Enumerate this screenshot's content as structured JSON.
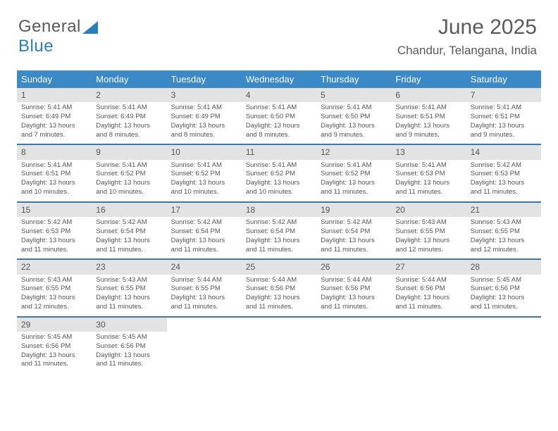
{
  "logo": {
    "word1": "General",
    "word2": "Blue"
  },
  "title": "June 2025",
  "subtitle": "Chandur, Telangana, India",
  "colors": {
    "header_bg": "#3b89c7",
    "header_text": "#ffffff",
    "daynum_bg": "#e3e3e3",
    "text": "#555555",
    "row_border": "#3b7aa8",
    "logo_gray": "#5a5a5a",
    "logo_blue": "#2a7fba"
  },
  "weekdays": [
    "Sunday",
    "Monday",
    "Tuesday",
    "Wednesday",
    "Thursday",
    "Friday",
    "Saturday"
  ],
  "weeks": [
    [
      {
        "n": "1",
        "sr": "Sunrise: 5:41 AM",
        "ss": "Sunset: 6:49 PM",
        "d1": "Daylight: 13 hours",
        "d2": "and 7 minutes."
      },
      {
        "n": "2",
        "sr": "Sunrise: 5:41 AM",
        "ss": "Sunset: 6:49 PM",
        "d1": "Daylight: 13 hours",
        "d2": "and 8 minutes."
      },
      {
        "n": "3",
        "sr": "Sunrise: 5:41 AM",
        "ss": "Sunset: 6:49 PM",
        "d1": "Daylight: 13 hours",
        "d2": "and 8 minutes."
      },
      {
        "n": "4",
        "sr": "Sunrise: 5:41 AM",
        "ss": "Sunset: 6:50 PM",
        "d1": "Daylight: 13 hours",
        "d2": "and 8 minutes."
      },
      {
        "n": "5",
        "sr": "Sunrise: 5:41 AM",
        "ss": "Sunset: 6:50 PM",
        "d1": "Daylight: 13 hours",
        "d2": "and 9 minutes."
      },
      {
        "n": "6",
        "sr": "Sunrise: 5:41 AM",
        "ss": "Sunset: 6:51 PM",
        "d1": "Daylight: 13 hours",
        "d2": "and 9 minutes."
      },
      {
        "n": "7",
        "sr": "Sunrise: 5:41 AM",
        "ss": "Sunset: 6:51 PM",
        "d1": "Daylight: 13 hours",
        "d2": "and 9 minutes."
      }
    ],
    [
      {
        "n": "8",
        "sr": "Sunrise: 5:41 AM",
        "ss": "Sunset: 6:51 PM",
        "d1": "Daylight: 13 hours",
        "d2": "and 10 minutes."
      },
      {
        "n": "9",
        "sr": "Sunrise: 5:41 AM",
        "ss": "Sunset: 6:52 PM",
        "d1": "Daylight: 13 hours",
        "d2": "and 10 minutes."
      },
      {
        "n": "10",
        "sr": "Sunrise: 5:41 AM",
        "ss": "Sunset: 6:52 PM",
        "d1": "Daylight: 13 hours",
        "d2": "and 10 minutes."
      },
      {
        "n": "11",
        "sr": "Sunrise: 5:41 AM",
        "ss": "Sunset: 6:52 PM",
        "d1": "Daylight: 13 hours",
        "d2": "and 10 minutes."
      },
      {
        "n": "12",
        "sr": "Sunrise: 5:41 AM",
        "ss": "Sunset: 6:52 PM",
        "d1": "Daylight: 13 hours",
        "d2": "and 11 minutes."
      },
      {
        "n": "13",
        "sr": "Sunrise: 5:41 AM",
        "ss": "Sunset: 6:53 PM",
        "d1": "Daylight: 13 hours",
        "d2": "and 11 minutes."
      },
      {
        "n": "14",
        "sr": "Sunrise: 5:42 AM",
        "ss": "Sunset: 6:53 PM",
        "d1": "Daylight: 13 hours",
        "d2": "and 11 minutes."
      }
    ],
    [
      {
        "n": "15",
        "sr": "Sunrise: 5:42 AM",
        "ss": "Sunset: 6:53 PM",
        "d1": "Daylight: 13 hours",
        "d2": "and 11 minutes."
      },
      {
        "n": "16",
        "sr": "Sunrise: 5:42 AM",
        "ss": "Sunset: 6:54 PM",
        "d1": "Daylight: 13 hours",
        "d2": "and 11 minutes."
      },
      {
        "n": "17",
        "sr": "Sunrise: 5:42 AM",
        "ss": "Sunset: 6:54 PM",
        "d1": "Daylight: 13 hours",
        "d2": "and 11 minutes."
      },
      {
        "n": "18",
        "sr": "Sunrise: 5:42 AM",
        "ss": "Sunset: 6:54 PM",
        "d1": "Daylight: 13 hours",
        "d2": "and 11 minutes."
      },
      {
        "n": "19",
        "sr": "Sunrise: 5:42 AM",
        "ss": "Sunset: 6:54 PM",
        "d1": "Daylight: 13 hours",
        "d2": "and 11 minutes."
      },
      {
        "n": "20",
        "sr": "Sunrise: 5:43 AM",
        "ss": "Sunset: 6:55 PM",
        "d1": "Daylight: 13 hours",
        "d2": "and 12 minutes."
      },
      {
        "n": "21",
        "sr": "Sunrise: 5:43 AM",
        "ss": "Sunset: 6:55 PM",
        "d1": "Daylight: 13 hours",
        "d2": "and 12 minutes."
      }
    ],
    [
      {
        "n": "22",
        "sr": "Sunrise: 5:43 AM",
        "ss": "Sunset: 6:55 PM",
        "d1": "Daylight: 13 hours",
        "d2": "and 12 minutes."
      },
      {
        "n": "23",
        "sr": "Sunrise: 5:43 AM",
        "ss": "Sunset: 6:55 PM",
        "d1": "Daylight: 13 hours",
        "d2": "and 11 minutes."
      },
      {
        "n": "24",
        "sr": "Sunrise: 5:44 AM",
        "ss": "Sunset: 6:55 PM",
        "d1": "Daylight: 13 hours",
        "d2": "and 11 minutes."
      },
      {
        "n": "25",
        "sr": "Sunrise: 5:44 AM",
        "ss": "Sunset: 6:56 PM",
        "d1": "Daylight: 13 hours",
        "d2": "and 11 minutes."
      },
      {
        "n": "26",
        "sr": "Sunrise: 5:44 AM",
        "ss": "Sunset: 6:56 PM",
        "d1": "Daylight: 13 hours",
        "d2": "and 11 minutes."
      },
      {
        "n": "27",
        "sr": "Sunrise: 5:44 AM",
        "ss": "Sunset: 6:56 PM",
        "d1": "Daylight: 13 hours",
        "d2": "and 11 minutes."
      },
      {
        "n": "28",
        "sr": "Sunrise: 5:45 AM",
        "ss": "Sunset: 6:56 PM",
        "d1": "Daylight: 13 hours",
        "d2": "and 11 minutes."
      }
    ],
    [
      {
        "n": "29",
        "sr": "Sunrise: 5:45 AM",
        "ss": "Sunset: 6:56 PM",
        "d1": "Daylight: 13 hours",
        "d2": "and 11 minutes."
      },
      {
        "n": "30",
        "sr": "Sunrise: 5:45 AM",
        "ss": "Sunset: 6:56 PM",
        "d1": "Daylight: 13 hours",
        "d2": "and 11 minutes."
      },
      null,
      null,
      null,
      null,
      null
    ]
  ]
}
